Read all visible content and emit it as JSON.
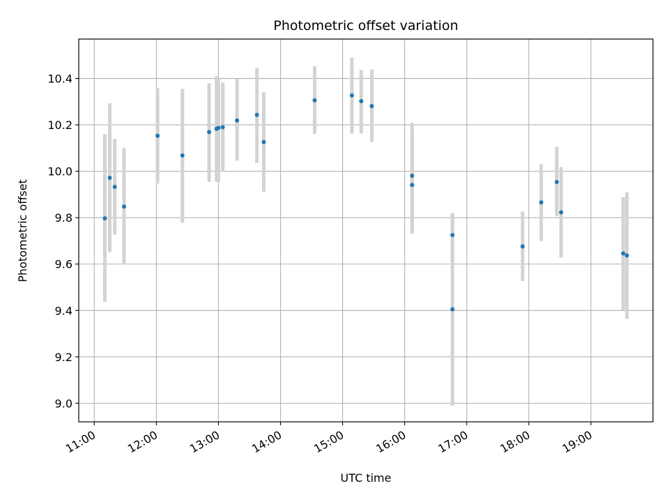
{
  "chart_data": {
    "type": "scatter",
    "title": "Photometric offset variation",
    "xlabel": "UTC time",
    "ylabel": "Photometric offset",
    "x_unit": "hours UTC",
    "xlim": [
      10.75,
      20.0
    ],
    "ylim": [
      8.92,
      10.57
    ],
    "x_ticks": [
      11,
      12,
      13,
      14,
      15,
      16,
      17,
      18,
      19
    ],
    "x_tick_labels": [
      "11:00",
      "12:00",
      "13:00",
      "14:00",
      "15:00",
      "16:00",
      "17:00",
      "18:00",
      "19:00"
    ],
    "y_ticks": [
      9.0,
      9.2,
      9.4,
      9.6,
      9.8,
      10.0,
      10.2,
      10.4
    ],
    "y_tick_labels": [
      "9.0",
      "9.2",
      "9.4",
      "9.6",
      "9.8",
      "10.0",
      "10.2",
      "10.4"
    ],
    "grid": true,
    "point_color": "#1f77b4",
    "errorbar_color": "#d3d3d3",
    "series": [
      {
        "points": [
          {
            "t": 11.17,
            "y": 9.797,
            "lo": 9.437,
            "hi": 10.16
          },
          {
            "t": 11.25,
            "y": 9.972,
            "lo": 9.652,
            "hi": 10.293
          },
          {
            "t": 11.33,
            "y": 9.933,
            "lo": 9.727,
            "hi": 10.139
          },
          {
            "t": 11.48,
            "y": 9.848,
            "lo": 9.599,
            "hi": 10.1
          },
          {
            "t": 12.02,
            "y": 10.153,
            "lo": 9.947,
            "hi": 10.358
          },
          {
            "t": 12.42,
            "y": 10.068,
            "lo": 9.778,
            "hi": 10.355
          },
          {
            "t": 12.85,
            "y": 10.169,
            "lo": 9.954,
            "hi": 10.379
          },
          {
            "t": 12.97,
            "y": 10.183,
            "lo": 9.955,
            "hi": 10.41
          },
          {
            "t": 13.0,
            "y": 10.187,
            "lo": 9.954,
            "hi": 10.405
          },
          {
            "t": 13.07,
            "y": 10.19,
            "lo": 9.998,
            "hi": 10.383
          },
          {
            "t": 13.3,
            "y": 10.219,
            "lo": 10.046,
            "hi": 10.397
          },
          {
            "t": 13.62,
            "y": 10.243,
            "lo": 10.036,
            "hi": 10.446
          },
          {
            "t": 13.73,
            "y": 10.126,
            "lo": 9.912,
            "hi": 10.34
          },
          {
            "t": 14.55,
            "y": 10.306,
            "lo": 10.161,
            "hi": 10.453
          },
          {
            "t": 15.15,
            "y": 10.327,
            "lo": 10.162,
            "hi": 10.49
          },
          {
            "t": 15.3,
            "y": 10.302,
            "lo": 10.163,
            "hi": 10.437
          },
          {
            "t": 15.47,
            "y": 10.281,
            "lo": 10.126,
            "hi": 10.439
          },
          {
            "t": 16.12,
            "y": 9.981,
            "lo": 9.752,
            "hi": 10.209
          },
          {
            "t": 16.12,
            "y": 9.941,
            "lo": 9.731,
            "hi": 10.15
          },
          {
            "t": 16.77,
            "y": 9.725,
            "lo": 9.62,
            "hi": 9.818
          },
          {
            "t": 16.77,
            "y": 9.405,
            "lo": 8.989,
            "hi": 9.82
          },
          {
            "t": 17.9,
            "y": 9.676,
            "lo": 9.527,
            "hi": 9.826
          },
          {
            "t": 18.2,
            "y": 9.866,
            "lo": 9.699,
            "hi": 10.03
          },
          {
            "t": 18.45,
            "y": 9.954,
            "lo": 9.807,
            "hi": 10.106
          },
          {
            "t": 18.52,
            "y": 9.823,
            "lo": 9.628,
            "hi": 10.018
          },
          {
            "t": 19.52,
            "y": 9.646,
            "lo": 9.401,
            "hi": 9.889
          },
          {
            "t": 19.58,
            "y": 9.637,
            "lo": 9.364,
            "hi": 9.909
          }
        ]
      }
    ]
  }
}
